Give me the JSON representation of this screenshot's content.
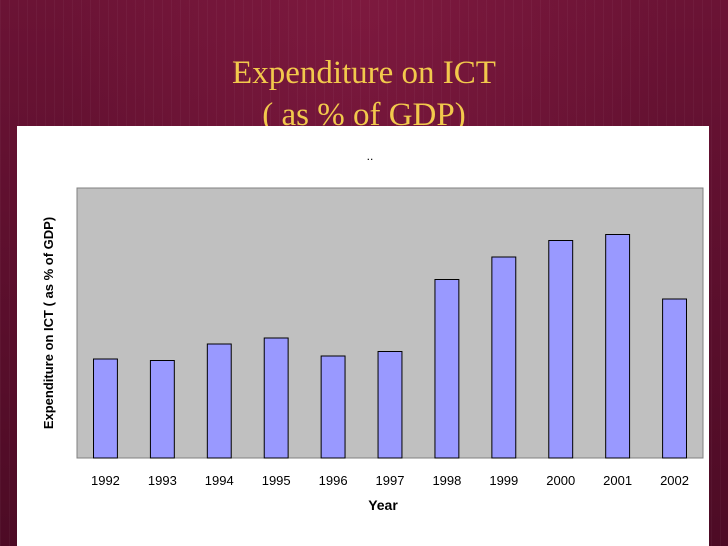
{
  "slide": {
    "title_line1": "Expenditure on ICT",
    "title_line2": "( as % of GDP)",
    "title_color": "#f2c94c",
    "background_color": "#5a0f2c"
  },
  "chart_data": {
    "type": "bar",
    "title": "..",
    "xlabel": "Year",
    "ylabel": "Expenditure on ICT ( as % of GDP)",
    "categories": [
      "1992",
      "1993",
      "1994",
      "1995",
      "1996",
      "1997",
      "1998",
      "1999",
      "2000",
      "2001",
      "2002"
    ],
    "values": [
      3.3,
      3.25,
      3.8,
      4.0,
      3.4,
      3.55,
      5.95,
      6.7,
      7.25,
      7.45,
      5.3
    ],
    "ylim": [
      0,
      9
    ],
    "y_ticks_shown": false,
    "grid": false,
    "legend": "none",
    "bar_color": "#9999ff",
    "plot_background": "#c0c0c0"
  }
}
